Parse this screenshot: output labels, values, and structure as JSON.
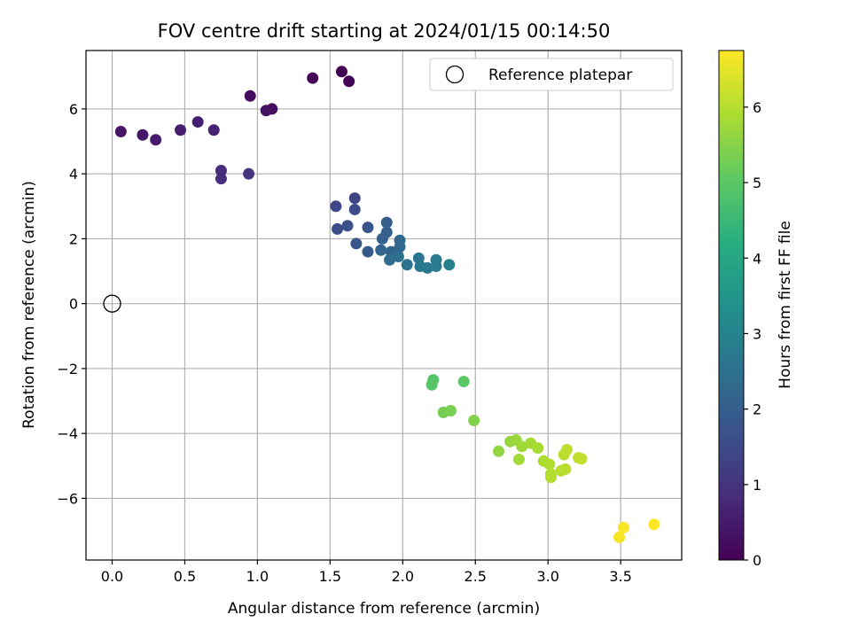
{
  "chart_data": {
    "type": "scatter",
    "title": "FOV centre drift starting at 2024/01/15 00:14:50",
    "xlabel": "Angular distance from reference (arcmin)",
    "ylabel": "Rotation from reference (arcmin)",
    "xlim": [
      -0.18,
      3.92
    ],
    "ylim": [
      -7.9,
      7.8
    ],
    "xticks": [
      0.0,
      0.5,
      1.0,
      1.5,
      2.0,
      2.5,
      3.0,
      3.5
    ],
    "xtick_labels": [
      "0.0",
      "0.5",
      "1.0",
      "1.5",
      "2.0",
      "2.5",
      "3.0",
      "3.5"
    ],
    "yticks": [
      -6,
      -4,
      -2,
      0,
      2,
      4,
      6
    ],
    "ytick_labels": [
      "−6",
      "−4",
      "−2",
      "0",
      "2",
      "4",
      "6"
    ],
    "grid": true,
    "legend": {
      "position": "top-right",
      "entries": [
        "Reference platepar"
      ]
    },
    "reference_point": {
      "x": 0,
      "y": 0,
      "label": "Reference platepar"
    },
    "colorbar": {
      "label": "Hours from first FF file",
      "range": [
        0,
        6.75
      ],
      "ticks": [
        0,
        1,
        2,
        3,
        4,
        5,
        6
      ],
      "tick_labels": [
        "0",
        "1",
        "2",
        "3",
        "4",
        "5",
        "6"
      ],
      "colormap": "viridis"
    },
    "points": [
      {
        "x": 1.58,
        "y": 7.15,
        "t": 0.0
      },
      {
        "x": 1.63,
        "y": 6.85,
        "t": 0.05
      },
      {
        "x": 1.38,
        "y": 6.95,
        "t": 0.1
      },
      {
        "x": 0.95,
        "y": 6.4,
        "t": 0.2
      },
      {
        "x": 1.1,
        "y": 6.0,
        "t": 0.25
      },
      {
        "x": 1.06,
        "y": 5.95,
        "t": 0.3
      },
      {
        "x": 0.06,
        "y": 5.3,
        "t": 0.4
      },
      {
        "x": 0.21,
        "y": 5.2,
        "t": 0.45
      },
      {
        "x": 0.3,
        "y": 5.05,
        "t": 0.5
      },
      {
        "x": 0.47,
        "y": 5.35,
        "t": 0.55
      },
      {
        "x": 0.59,
        "y": 5.6,
        "t": 0.6
      },
      {
        "x": 0.7,
        "y": 5.35,
        "t": 0.65
      },
      {
        "x": 0.75,
        "y": 4.1,
        "t": 0.85
      },
      {
        "x": 0.75,
        "y": 3.85,
        "t": 0.9
      },
      {
        "x": 0.94,
        "y": 4.0,
        "t": 1.0
      },
      {
        "x": 1.67,
        "y": 3.25,
        "t": 1.4
      },
      {
        "x": 1.54,
        "y": 3.0,
        "t": 1.45
      },
      {
        "x": 1.67,
        "y": 2.9,
        "t": 1.55
      },
      {
        "x": 1.55,
        "y": 2.3,
        "t": 1.6
      },
      {
        "x": 1.62,
        "y": 2.4,
        "t": 1.65
      },
      {
        "x": 1.76,
        "y": 2.35,
        "t": 1.75
      },
      {
        "x": 1.68,
        "y": 1.85,
        "t": 1.8
      },
      {
        "x": 1.76,
        "y": 1.6,
        "t": 1.9
      },
      {
        "x": 1.89,
        "y": 2.5,
        "t": 2.0
      },
      {
        "x": 1.89,
        "y": 2.2,
        "t": 2.05
      },
      {
        "x": 1.86,
        "y": 2.0,
        "t": 2.1
      },
      {
        "x": 1.85,
        "y": 1.65,
        "t": 2.15
      },
      {
        "x": 1.92,
        "y": 1.6,
        "t": 2.2
      },
      {
        "x": 1.98,
        "y": 1.95,
        "t": 2.25
      },
      {
        "x": 1.98,
        "y": 1.75,
        "t": 2.3
      },
      {
        "x": 1.91,
        "y": 1.35,
        "t": 2.4
      },
      {
        "x": 1.97,
        "y": 1.45,
        "t": 2.45
      },
      {
        "x": 2.03,
        "y": 1.2,
        "t": 2.55
      },
      {
        "x": 2.11,
        "y": 1.4,
        "t": 2.6
      },
      {
        "x": 2.12,
        "y": 1.15,
        "t": 2.65
      },
      {
        "x": 2.17,
        "y": 1.1,
        "t": 2.7
      },
      {
        "x": 2.23,
        "y": 1.35,
        "t": 2.75
      },
      {
        "x": 2.23,
        "y": 1.15,
        "t": 2.8
      },
      {
        "x": 2.32,
        "y": 1.2,
        "t": 2.9
      },
      {
        "x": 2.21,
        "y": -2.35,
        "t": 4.9
      },
      {
        "x": 2.2,
        "y": -2.5,
        "t": 4.95
      },
      {
        "x": 2.42,
        "y": -2.4,
        "t": 5.0
      },
      {
        "x": 2.28,
        "y": -3.35,
        "t": 5.3
      },
      {
        "x": 2.33,
        "y": -3.3,
        "t": 5.35
      },
      {
        "x": 2.49,
        "y": -3.6,
        "t": 5.45
      },
      {
        "x": 2.66,
        "y": -4.55,
        "t": 5.6
      },
      {
        "x": 2.74,
        "y": -4.25,
        "t": 5.65
      },
      {
        "x": 2.78,
        "y": -4.2,
        "t": 5.7
      },
      {
        "x": 2.82,
        "y": -4.4,
        "t": 5.75
      },
      {
        "x": 2.8,
        "y": -4.8,
        "t": 5.8
      },
      {
        "x": 2.88,
        "y": -4.3,
        "t": 5.82
      },
      {
        "x": 2.93,
        "y": -4.45,
        "t": 5.85
      },
      {
        "x": 2.97,
        "y": -4.85,
        "t": 5.9
      },
      {
        "x": 3.01,
        "y": -4.95,
        "t": 5.92
      },
      {
        "x": 3.02,
        "y": -5.25,
        "t": 5.95
      },
      {
        "x": 3.02,
        "y": -5.35,
        "t": 5.97
      },
      {
        "x": 3.09,
        "y": -5.15,
        "t": 6.0
      },
      {
        "x": 3.12,
        "y": -5.1,
        "t": 6.02
      },
      {
        "x": 3.11,
        "y": -4.65,
        "t": 6.05
      },
      {
        "x": 3.13,
        "y": -4.5,
        "t": 6.07
      },
      {
        "x": 3.21,
        "y": -4.75,
        "t": 6.1
      },
      {
        "x": 3.23,
        "y": -4.78,
        "t": 6.12
      },
      {
        "x": 3.49,
        "y": -7.2,
        "t": 6.65
      },
      {
        "x": 3.52,
        "y": -6.9,
        "t": 6.7
      },
      {
        "x": 3.73,
        "y": -6.8,
        "t": 6.75
      }
    ]
  }
}
